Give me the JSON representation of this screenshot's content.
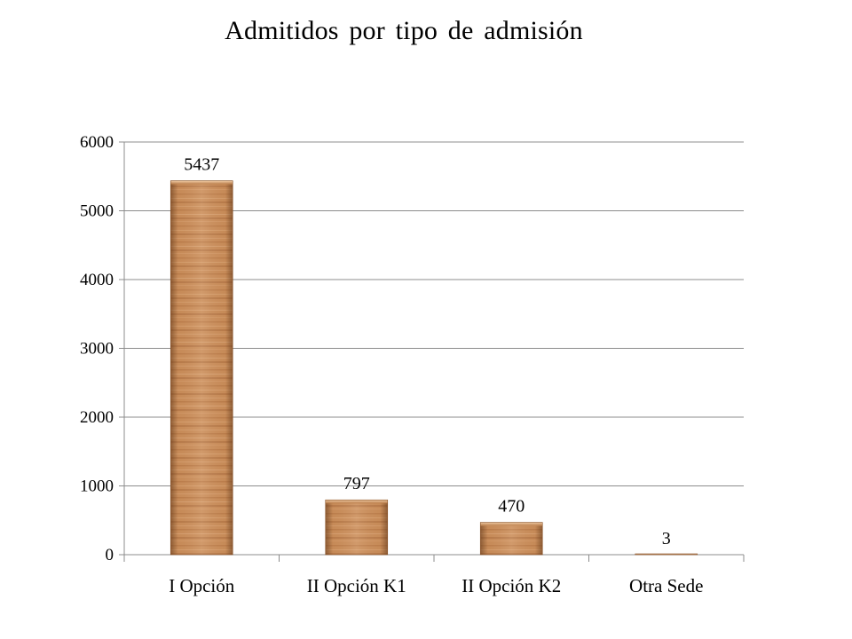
{
  "chart_data": {
    "type": "bar",
    "title": "Admitidos por tipo de admisión",
    "xlabel": "",
    "ylabel": "",
    "categories": [
      "I Opción",
      "II Opción K1",
      "II Opción K2",
      "Otra Sede"
    ],
    "values": [
      5437,
      797,
      470,
      3
    ],
    "data_labels": [
      "5437",
      "797",
      "470",
      "3"
    ],
    "yticks": [
      "0",
      "1000",
      "2000",
      "3000",
      "4000",
      "5000",
      "6000"
    ],
    "ylim": [
      0,
      6000
    ],
    "grid": true,
    "legend": "none",
    "colors": {
      "bar": "#c98a55",
      "bar_dark": "#8a5428",
      "bar_light": "#e2b184",
      "grid": "#8c8c8c",
      "axis": "#8c8c8c"
    }
  }
}
